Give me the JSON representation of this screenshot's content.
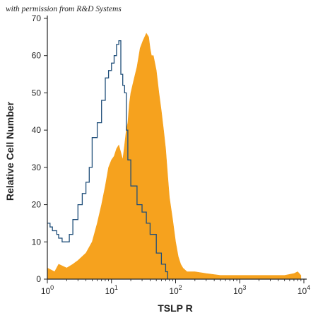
{
  "credit": "with permission from R&D Systems",
  "colors": {
    "filled": "#f6a21e",
    "outline": "#1f4e79",
    "axis": "#222222"
  },
  "chart_data": {
    "type": "area",
    "title": "",
    "xlabel": "TSLP R",
    "ylabel": "Relative Cell Number",
    "x_scale": "log",
    "xlim": [
      1,
      10000
    ],
    "ylim": [
      0,
      70
    ],
    "x_ticks": [
      {
        "value": 1,
        "base": "10",
        "exp": "0"
      },
      {
        "value": 10,
        "base": "10",
        "exp": "1"
      },
      {
        "value": 100,
        "base": "10",
        "exp": "2"
      },
      {
        "value": 1000,
        "base": "10",
        "exp": "3"
      },
      {
        "value": 10000,
        "base": "10",
        "exp": "4"
      }
    ],
    "y_ticks": [
      0,
      10,
      20,
      30,
      40,
      50,
      60,
      70
    ],
    "grid": false,
    "legend": "none",
    "series": [
      {
        "style": "filled",
        "points": [
          [
            1,
            3
          ],
          [
            1.3,
            2
          ],
          [
            1.5,
            4
          ],
          [
            2,
            3
          ],
          [
            2.5,
            4
          ],
          [
            3,
            5
          ],
          [
            4,
            7
          ],
          [
            5,
            10
          ],
          [
            6,
            15
          ],
          [
            7,
            20
          ],
          [
            8,
            25
          ],
          [
            9,
            30
          ],
          [
            10,
            32
          ],
          [
            11,
            33
          ],
          [
            12,
            35
          ],
          [
            13,
            36
          ],
          [
            14,
            34
          ],
          [
            15,
            32
          ],
          [
            16,
            36
          ],
          [
            17,
            40
          ],
          [
            18,
            42
          ],
          [
            19,
            47
          ],
          [
            20,
            50
          ],
          [
            22,
            53
          ],
          [
            25,
            57
          ],
          [
            28,
            62
          ],
          [
            31,
            64
          ],
          [
            35,
            66
          ],
          [
            38,
            65
          ],
          [
            40,
            62
          ],
          [
            42,
            60
          ],
          [
            45,
            60
          ],
          [
            50,
            56
          ],
          [
            55,
            50
          ],
          [
            60,
            45
          ],
          [
            65,
            40
          ],
          [
            70,
            35
          ],
          [
            75,
            28
          ],
          [
            80,
            22
          ],
          [
            90,
            16
          ],
          [
            100,
            10
          ],
          [
            110,
            6
          ],
          [
            120,
            4
          ],
          [
            130,
            3
          ],
          [
            150,
            2
          ],
          [
            200,
            2
          ],
          [
            300,
            1.5
          ],
          [
            500,
            1
          ],
          [
            700,
            1
          ],
          [
            1000,
            1
          ],
          [
            2000,
            1
          ],
          [
            3000,
            1
          ],
          [
            5000,
            1
          ],
          [
            7000,
            1.5
          ],
          [
            8000,
            2
          ],
          [
            9000,
            1
          ]
        ]
      },
      {
        "style": "outline",
        "points": [
          [
            1,
            15
          ],
          [
            1.1,
            14
          ],
          [
            1.2,
            13
          ],
          [
            1.4,
            12
          ],
          [
            1.5,
            11
          ],
          [
            1.7,
            10
          ],
          [
            2,
            10
          ],
          [
            2.2,
            12
          ],
          [
            2.5,
            16
          ],
          [
            3,
            20
          ],
          [
            3.5,
            23
          ],
          [
            4,
            26
          ],
          [
            4.5,
            30
          ],
          [
            5,
            38
          ],
          [
            6,
            42
          ],
          [
            7,
            48
          ],
          [
            8,
            54
          ],
          [
            9,
            56
          ],
          [
            10,
            58
          ],
          [
            11,
            60
          ],
          [
            12,
            63
          ],
          [
            13,
            64
          ],
          [
            14,
            55
          ],
          [
            15,
            52
          ],
          [
            16,
            50
          ],
          [
            17,
            40
          ],
          [
            18,
            32
          ],
          [
            20,
            25
          ],
          [
            25,
            20
          ],
          [
            30,
            18
          ],
          [
            35,
            15
          ],
          [
            40,
            12
          ],
          [
            50,
            7
          ],
          [
            60,
            4
          ],
          [
            70,
            2
          ],
          [
            75,
            0
          ]
        ]
      }
    ]
  }
}
